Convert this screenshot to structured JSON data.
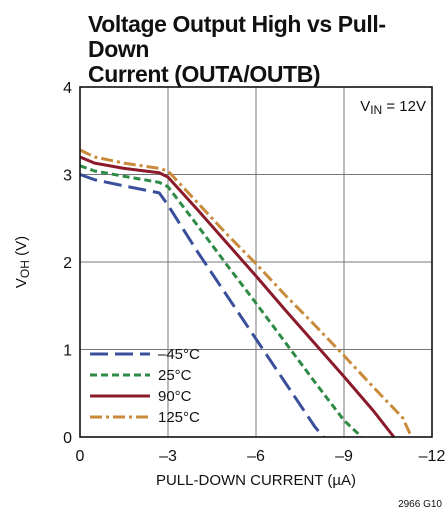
{
  "chart_data": {
    "type": "line",
    "title_line1": "Voltage Output High vs Pull-Down",
    "title_line2": "Current (OUTA/OUTB)",
    "xlabel": "PULL-DOWN CURRENT (µA)",
    "ylabel_main": "V",
    "ylabel_sub": "OH",
    "ylabel_unit": " (V)",
    "annotation_main": "V",
    "annotation_sub": "IN",
    "annotation_rest": " = 12V",
    "figure_code": "2966 G10",
    "xlim": [
      0,
      -12
    ],
    "ylim": [
      0,
      4
    ],
    "x_ticks": [
      0,
      -3,
      -6,
      -9,
      -12
    ],
    "x_tick_labels": [
      "0",
      "–3",
      "–6",
      "–9",
      "–12"
    ],
    "y_ticks": [
      0,
      1,
      2,
      3,
      4
    ],
    "y_tick_labels": [
      "0",
      "1",
      "2",
      "3",
      "4"
    ],
    "grid": true,
    "legend_position": "bottom-left",
    "series": [
      {
        "name": "–45°C",
        "color": "#3a4f9c",
        "dash": "long-dash",
        "x": [
          0,
          -0.5,
          -1.5,
          -2.7,
          -3.0,
          -4.0,
          -5.0,
          -6.0,
          -7.0,
          -8.0,
          -8.3
        ],
        "y": [
          3.0,
          2.94,
          2.87,
          2.79,
          2.65,
          2.12,
          1.62,
          1.12,
          0.62,
          0.12,
          0.0
        ]
      },
      {
        "name": "25°C",
        "color": "#2e8b45",
        "dash": "short-dash",
        "x": [
          0,
          -0.5,
          -1.5,
          -2.7,
          -3.0,
          -4.0,
          -5.0,
          -6.0,
          -7.0,
          -8.0,
          -9.0,
          -9.6
        ],
        "y": [
          3.1,
          3.04,
          2.98,
          2.91,
          2.86,
          2.42,
          1.97,
          1.53,
          1.08,
          0.63,
          0.19,
          0.0
        ]
      },
      {
        "name": "90°C",
        "color": "#8b1a2b",
        "dash": "solid",
        "x": [
          0,
          -0.5,
          -1.5,
          -2.7,
          -3.0,
          -4.0,
          -5.0,
          -6.0,
          -7.0,
          -8.0,
          -9.0,
          -10.0,
          -10.7
        ],
        "y": [
          3.2,
          3.13,
          3.07,
          3.02,
          2.97,
          2.6,
          2.22,
          1.84,
          1.45,
          1.07,
          0.69,
          0.3,
          0.0
        ]
      },
      {
        "name": "125°C",
        "color": "#c98a3a",
        "dash": "dash-dot",
        "x": [
          0,
          -0.5,
          -1.5,
          -2.7,
          -3.0,
          -4.0,
          -5.0,
          -6.0,
          -7.0,
          -8.0,
          -9.0,
          -10.0,
          -11.0,
          -11.3
        ],
        "y": [
          3.28,
          3.2,
          3.13,
          3.07,
          3.04,
          2.68,
          2.32,
          1.98,
          1.62,
          1.28,
          0.93,
          0.57,
          0.22,
          0.0
        ]
      }
    ]
  }
}
